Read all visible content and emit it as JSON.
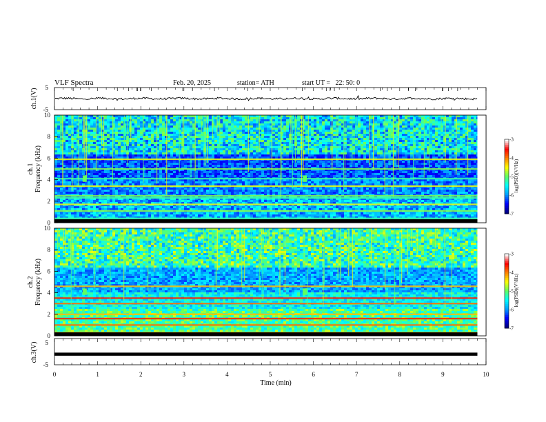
{
  "header": {
    "title": "VLF Spectra",
    "date": "Feb. 20, 2025",
    "station": "station= ATH",
    "start": "start UT =   22: 50: 0"
  },
  "chart_data": [
    {
      "type": "line",
      "name": "ch1-waveform",
      "ylabel": "ch.1(V)",
      "ylim": [
        -5,
        5
      ],
      "yticks": [
        "5",
        "-5"
      ],
      "xlim": [
        0,
        10
      ],
      "values_note": "noisy signal centered near 0 V, amplitude about ±1 V"
    },
    {
      "type": "heatmap",
      "name": "ch1-spectrogram",
      "channel_label": "ch.1",
      "ylabel": "Frequency (kHz)",
      "ylim": [
        0,
        10
      ],
      "yticks": [
        "0",
        "2",
        "4",
        "6",
        "8",
        "10"
      ],
      "xlim": [
        0,
        9.8
      ],
      "colorbar": {
        "label": "log(PSD)(V²/Hz)",
        "range": [
          -7,
          -3
        ],
        "ticks": [
          "-3",
          "-4",
          "-5",
          "-6",
          "-7"
        ]
      },
      "bands_khz": [
        0.4,
        1.1,
        1.7,
        2.3,
        2.5,
        3.4,
        4.1,
        5.0,
        5.9
      ],
      "bursts_min": [
        0.7,
        5.8
      ]
    },
    {
      "type": "heatmap",
      "name": "ch2-spectrogram",
      "channel_label": "ch.2",
      "ylabel": "Frequency (kHz)",
      "ylim": [
        0,
        10
      ],
      "yticks": [
        "0",
        "2",
        "4",
        "6",
        "8",
        "10"
      ],
      "xlim": [
        0,
        9.8
      ],
      "colorbar": {
        "label": "log(PSD)(V²/Hz)",
        "range": [
          -7,
          -3
        ],
        "ticks": [
          "-3",
          "-4",
          "-5",
          "-6",
          "-7"
        ]
      },
      "bands_khz": [
        0.3,
        1.0,
        1.6,
        2.0,
        3.0,
        3.5,
        4.6
      ],
      "bursts_min": [
        0.7,
        5.8
      ]
    },
    {
      "type": "line",
      "name": "ch3-waveform",
      "ylabel": "ch.3(V)",
      "ylim": [
        -5,
        5
      ],
      "yticks": [
        "5",
        "-5"
      ],
      "xlim": [
        0,
        9.8
      ],
      "value": -1.3
    }
  ],
  "xaxis": {
    "label": "Time (min)",
    "range": [
      0,
      10
    ],
    "ticks": [
      "0",
      "1",
      "2",
      "3",
      "4",
      "5",
      "6",
      "7",
      "8",
      "9",
      "10"
    ]
  },
  "colors": {
    "colormap": [
      "#000080",
      "#0000ff",
      "#00a0ff",
      "#00ffff",
      "#60ff60",
      "#ffff00",
      "#ff8000",
      "#ff0000",
      "#ffffff"
    ]
  }
}
